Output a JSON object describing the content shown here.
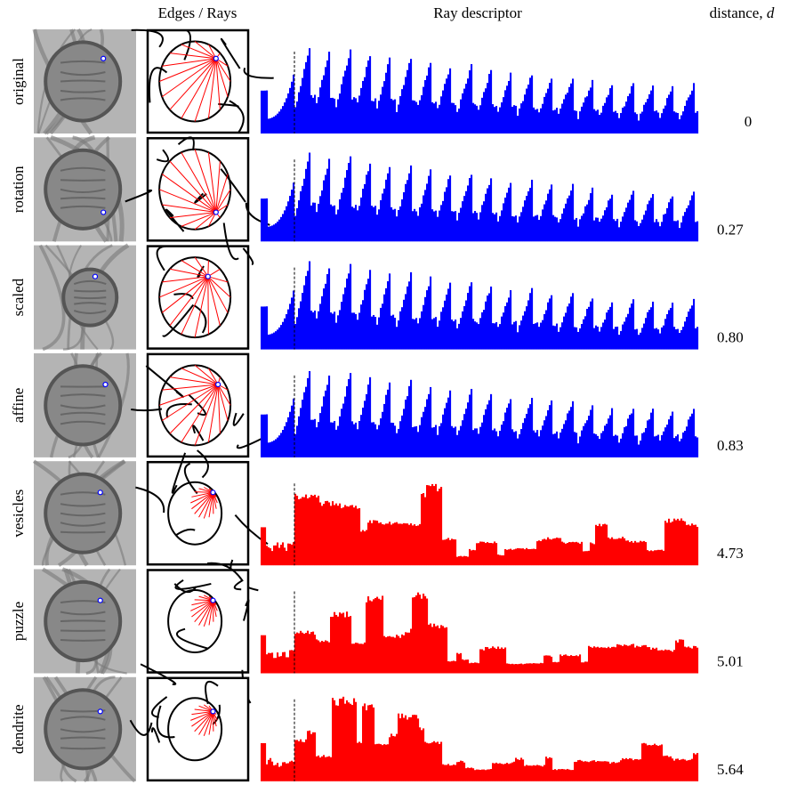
{
  "header": {
    "edges": "Edges / Rays",
    "descriptor": "Ray descriptor",
    "distance": "distance, ",
    "distance_symbol": "d"
  },
  "rows": [
    {
      "label": "original",
      "distance": "0",
      "color": "#0000ff"
    },
    {
      "label": "rotation",
      "distance": "0.27",
      "color": "#0000ff"
    },
    {
      "label": "scaled",
      "distance": "0.80",
      "color": "#0000ff"
    },
    {
      "label": "affine",
      "distance": "0.83",
      "color": "#0000ff"
    },
    {
      "label": "vesicles",
      "distance": "4.73",
      "color": "#ff0000"
    },
    {
      "label": "puzzle",
      "distance": "5.01",
      "color": "#ff0000"
    },
    {
      "label": "dendrite",
      "distance": "5.64",
      "color": "#ff0000"
    }
  ]
}
